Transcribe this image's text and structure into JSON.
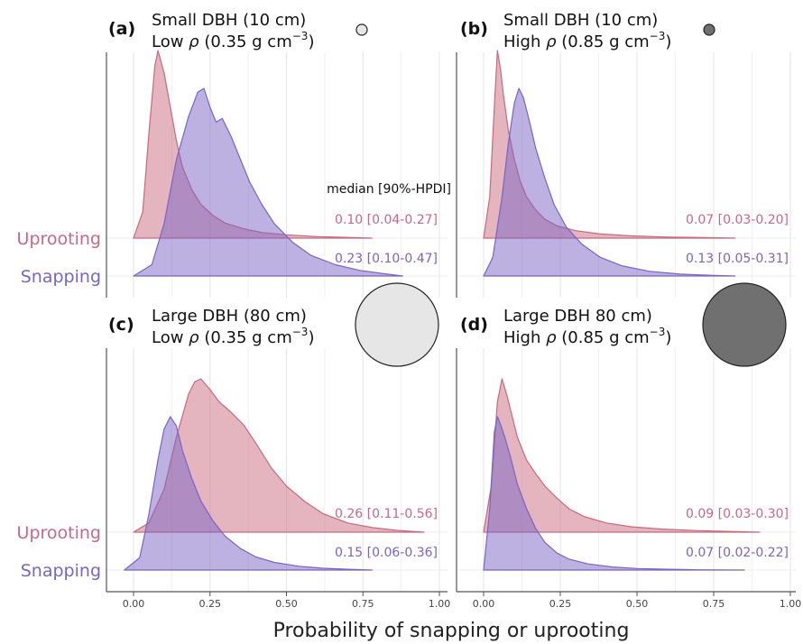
{
  "figure": {
    "xlabel": "Probability of snapping or uprooting",
    "annotation_header": "median [90%-HPDI]",
    "row_labels": [
      "Uprooting",
      "Snapping"
    ],
    "x_ticks": [
      0,
      0.25,
      0.5,
      0.75,
      1.0
    ],
    "x_tick_labels": [
      "0.00",
      "0.25",
      "0.50",
      "0.75",
      "1.00"
    ],
    "xlim": [
      -0.05,
      1.02
    ],
    "colors": {
      "uprooting": "#c9697f",
      "snapping": "#7a64c4"
    },
    "swatch_legend": {
      "small": "small circle = small DBH, large circle = large DBH",
      "light_fill": "#e6e6e6",
      "dark_fill": "#707070"
    }
  },
  "chart_data": [
    {
      "type": "area",
      "panel": "(a)",
      "title": "Small DBH (10 cm)",
      "subtitle_prefix": "Low ",
      "subtitle_value": " (0.35 g cm",
      "swatch": "light-small",
      "series": [
        {
          "name": "Uprooting",
          "annotation": "0.10 [0.04-0.27]",
          "x": [
            0.0,
            0.03,
            0.05,
            0.07,
            0.08,
            0.1,
            0.12,
            0.14,
            0.16,
            0.19,
            0.22,
            0.26,
            0.3,
            0.36,
            0.42,
            0.5,
            0.6,
            0.7,
            0.78
          ],
          "y": [
            0.0,
            0.14,
            0.55,
            0.92,
            1.0,
            0.88,
            0.7,
            0.52,
            0.38,
            0.26,
            0.18,
            0.12,
            0.08,
            0.05,
            0.03,
            0.018,
            0.008,
            0.004,
            0.0
          ]
        },
        {
          "name": "Snapping",
          "annotation": "0.23 [0.10-0.47]",
          "x": [
            0.0,
            0.06,
            0.1,
            0.14,
            0.18,
            0.21,
            0.23,
            0.25,
            0.27,
            0.29,
            0.32,
            0.35,
            0.38,
            0.42,
            0.46,
            0.52,
            0.58,
            0.66,
            0.74,
            0.82,
            0.88
          ],
          "y": [
            0.0,
            0.06,
            0.28,
            0.62,
            0.85,
            0.98,
            1.0,
            0.9,
            0.82,
            0.84,
            0.74,
            0.62,
            0.5,
            0.38,
            0.28,
            0.18,
            0.11,
            0.06,
            0.03,
            0.012,
            0.0
          ]
        }
      ]
    },
    {
      "type": "area",
      "panel": "(b)",
      "title": "Small DBH (10 cm)",
      "subtitle_prefix": "High ",
      "subtitle_value": " (0.85 g cm",
      "swatch": "dark-small",
      "series": [
        {
          "name": "Uprooting",
          "annotation": "0.07 [0.03-0.20]",
          "x": [
            0.0,
            0.02,
            0.035,
            0.045,
            0.055,
            0.065,
            0.08,
            0.1,
            0.12,
            0.14,
            0.17,
            0.2,
            0.24,
            0.3,
            0.38,
            0.48,
            0.6,
            0.72,
            0.82
          ],
          "y": [
            0.0,
            0.22,
            0.7,
            1.0,
            0.9,
            0.76,
            0.58,
            0.42,
            0.3,
            0.22,
            0.15,
            0.1,
            0.065,
            0.04,
            0.022,
            0.012,
            0.006,
            0.003,
            0.0
          ]
        },
        {
          "name": "Snapping",
          "annotation": "0.13 [0.05-0.31]",
          "x": [
            0.0,
            0.03,
            0.06,
            0.08,
            0.1,
            0.115,
            0.13,
            0.15,
            0.17,
            0.2,
            0.23,
            0.27,
            0.32,
            0.38,
            0.45,
            0.54,
            0.64,
            0.74,
            0.82
          ],
          "y": [
            0.0,
            0.1,
            0.42,
            0.7,
            0.92,
            1.0,
            0.95,
            0.82,
            0.68,
            0.52,
            0.38,
            0.26,
            0.17,
            0.1,
            0.055,
            0.025,
            0.01,
            0.004,
            0.0
          ]
        }
      ]
    },
    {
      "type": "area",
      "panel": "(c)",
      "title": "Large DBH (80 cm)",
      "subtitle_prefix": "Low ",
      "subtitle_value": " (0.35 g cm",
      "swatch": "light-large",
      "series": [
        {
          "name": "Uprooting",
          "annotation": "0.26 [0.11-0.56]",
          "x": [
            0.0,
            0.05,
            0.1,
            0.14,
            0.18,
            0.2,
            0.22,
            0.25,
            0.28,
            0.32,
            0.36,
            0.4,
            0.45,
            0.5,
            0.56,
            0.62,
            0.7,
            0.78,
            0.86,
            0.95
          ],
          "y": [
            0.0,
            0.06,
            0.28,
            0.62,
            0.9,
            0.98,
            1.0,
            0.93,
            0.85,
            0.78,
            0.7,
            0.58,
            0.42,
            0.3,
            0.2,
            0.12,
            0.06,
            0.03,
            0.012,
            0.0
          ]
        },
        {
          "name": "Snapping",
          "annotation": "0.15 [0.06-0.36]",
          "x": [
            -0.03,
            0.02,
            0.05,
            0.08,
            0.1,
            0.12,
            0.14,
            0.16,
            0.19,
            0.22,
            0.26,
            0.3,
            0.35,
            0.4,
            0.46,
            0.54,
            0.62,
            0.7,
            0.78
          ],
          "y": [
            0.0,
            0.08,
            0.36,
            0.72,
            0.92,
            1.0,
            0.94,
            0.78,
            0.6,
            0.45,
            0.32,
            0.22,
            0.14,
            0.085,
            0.05,
            0.025,
            0.012,
            0.005,
            0.0
          ]
        }
      ]
    },
    {
      "type": "area",
      "panel": "(d)",
      "title": "Large DBH 80 cm)",
      "subtitle_prefix": "High ",
      "subtitle_value": " (0.85 g cm",
      "swatch": "dark-large",
      "series": [
        {
          "name": "Uprooting",
          "annotation": "0.09 [0.03-0.30]",
          "x": [
            0.0,
            0.025,
            0.045,
            0.06,
            0.075,
            0.09,
            0.11,
            0.14,
            0.17,
            0.2,
            0.24,
            0.28,
            0.33,
            0.4,
            0.48,
            0.58,
            0.7,
            0.82,
            0.9
          ],
          "y": [
            0.0,
            0.3,
            0.85,
            1.0,
            0.9,
            0.78,
            0.62,
            0.47,
            0.38,
            0.3,
            0.22,
            0.15,
            0.1,
            0.06,
            0.035,
            0.02,
            0.01,
            0.004,
            0.0
          ]
        },
        {
          "name": "Snapping",
          "annotation": "0.07 [0.02-0.22]",
          "x": [
            0.0,
            0.02,
            0.035,
            0.045,
            0.055,
            0.07,
            0.09,
            0.11,
            0.14,
            0.17,
            0.2,
            0.24,
            0.28,
            0.34,
            0.42,
            0.5,
            0.6,
            0.7,
            0.85
          ],
          "y": [
            0.0,
            0.4,
            0.9,
            1.0,
            0.95,
            0.86,
            0.72,
            0.56,
            0.4,
            0.27,
            0.18,
            0.11,
            0.07,
            0.04,
            0.02,
            0.01,
            0.005,
            0.002,
            0.0
          ]
        }
      ]
    }
  ]
}
